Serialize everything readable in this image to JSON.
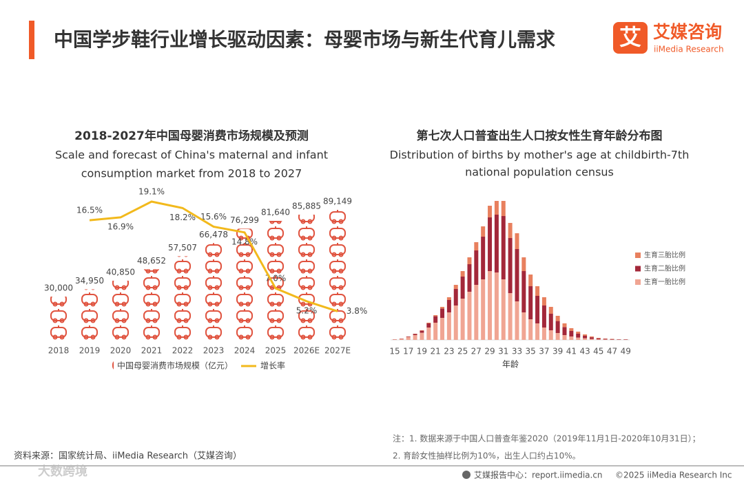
{
  "header": {
    "title": "中国学步鞋行业增长驱动因素：母婴市场与新生代育儿需求",
    "logo_mark": "艾",
    "logo_name": "艾媒咨询",
    "logo_sub": "iiMedia Research"
  },
  "chart_data": [
    {
      "type": "pictogram-bar-line",
      "title": "2018-2027年中国母婴消费市场规模及预测",
      "subtitle": [
        "Scale and forecast of China's maternal and infant",
        "consumption market from 2018 to 2027"
      ],
      "categories": [
        "2018",
        "2019",
        "2020",
        "2021",
        "2022",
        "2023",
        "2024",
        "2025",
        "2026E",
        "2027E"
      ],
      "series": [
        {
          "name": "中国母婴消费市场规模（亿元）",
          "color": "#e0533f",
          "values": [
            30000,
            34950,
            40850,
            48652,
            57507,
            66478,
            76299,
            81640,
            85885,
            89149
          ],
          "value_labels": [
            "30,000",
            "34,950",
            "40,850",
            "48,652",
            "57,507",
            "66,478",
            "76,299",
            "81,640",
            "85,885",
            "89,149"
          ]
        },
        {
          "name": "增长率",
          "color": "#f2b91c",
          "axis": "y2",
          "values": [
            null,
            16.5,
            16.9,
            19.1,
            18.2,
            15.6,
            14.8,
            7.0,
            5.2,
            3.8
          ],
          "value_labels": [
            null,
            "16.5%",
            "16.9%",
            "19.1%",
            "18.2%",
            "15.6%",
            "14.8%",
            "7.0%",
            "5.2%",
            "3.8%"
          ]
        }
      ]
    },
    {
      "type": "stacked-bar",
      "title": "第七次人口普查出生人口按女性生育年龄分布图",
      "subtitle": [
        "Distribution of births by mother's age at childbirth-7th",
        "national population census"
      ],
      "x_label": "年龄",
      "categories": [
        "15",
        null,
        "17",
        null,
        "19",
        null,
        "21",
        null,
        "23",
        null,
        "25",
        null,
        "27",
        null,
        "29",
        null,
        "31",
        null,
        "33",
        null,
        "35",
        null,
        "37",
        null,
        "39",
        null,
        "41",
        null,
        "43",
        null,
        "45",
        null,
        "47",
        null,
        "49"
      ],
      "legend": "right",
      "series": [
        {
          "name": "生育一胎比例",
          "color": "#f0a593",
          "values": [
            0.04,
            0.08,
            0.2,
            0.35,
            0.52,
            0.9,
            1.25,
            1.6,
            2.0,
            2.5,
            3.0,
            3.5,
            4.0,
            4.4,
            5.0,
            4.9,
            4.4,
            3.4,
            2.8,
            2.0,
            1.5,
            1.2,
            0.9,
            0.7,
            0.5,
            0.35,
            0.25,
            0.17,
            0.12,
            0.07,
            0.04,
            0.03,
            0.02,
            0.01,
            0.01
          ]
        },
        {
          "name": "生育二胎比例",
          "color": "#a3283a",
          "values": [
            0.01,
            0.02,
            0.04,
            0.08,
            0.15,
            0.3,
            0.47,
            0.68,
            0.9,
            1.2,
            1.6,
            2.0,
            2.5,
            3.1,
            3.9,
            4.2,
            4.6,
            4.0,
            3.8,
            3.0,
            2.4,
            2.0,
            1.6,
            1.2,
            0.87,
            0.58,
            0.4,
            0.28,
            0.18,
            0.12,
            0.07,
            0.05,
            0.04,
            0.03,
            0.03
          ]
        },
        {
          "name": "生育三胎比例",
          "color": "#e8805e",
          "values": [
            0,
            0,
            0.01,
            0.02,
            0.03,
            0.05,
            0.08,
            0.12,
            0.2,
            0.3,
            0.4,
            0.5,
            0.6,
            0.75,
            0.85,
            1.0,
            1.1,
            1.1,
            1.15,
            1.0,
            0.85,
            0.7,
            0.6,
            0.5,
            0.38,
            0.27,
            0.2,
            0.15,
            0.1,
            0.06,
            0.04,
            0.02,
            0.02,
            0.01,
            0.01
          ]
        }
      ]
    }
  ],
  "source": "资料来源：国家统计局、iiMedia Research（艾媒咨询）",
  "notes": [
    "注：1. 数据来源于中国人口普查年鉴2020（2019年11月1日-2020年10月31日）；",
    "2. 育龄女性抽样比例为10%，出生人口约占10%。"
  ],
  "watermark": "大数跨境",
  "footer": {
    "site": "艾媒报告中心：report.iimedia.cn",
    "copyright": "©2025  iiMedia Research  Inc"
  }
}
